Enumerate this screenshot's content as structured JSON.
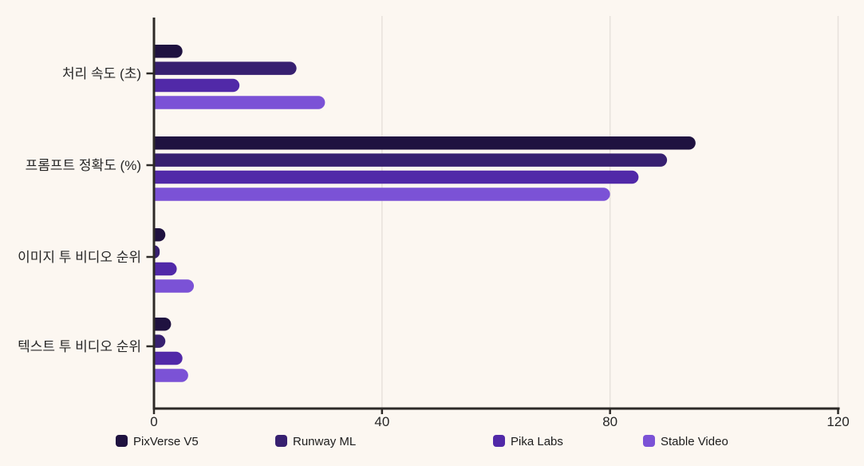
{
  "page": {
    "background": "#fcf7f1"
  },
  "chart_data": {
    "type": "bar",
    "orientation": "horizontal",
    "title": "",
    "xlabel": "",
    "ylabel": "",
    "categories": [
      "처리 속도 (초)",
      "프롬프트 정확도 (%)",
      "이미지 투 비디오 순위",
      "텍스트 투 비디오 순위"
    ],
    "series": [
      {
        "name": "PixVerse V5",
        "color": "#1f1240",
        "values": [
          5,
          95,
          2,
          3
        ]
      },
      {
        "name": "Runway ML",
        "color": "#372070",
        "values": [
          25,
          90,
          1,
          2
        ]
      },
      {
        "name": "Pika Labs",
        "color": "#5129a8",
        "values": [
          15,
          85,
          4,
          5
        ]
      },
      {
        "name": "Stable Video",
        "color": "#7b52d6",
        "values": [
          30,
          80,
          7,
          6
        ]
      }
    ],
    "xlim": [
      0,
      120
    ],
    "xticks": [
      "0",
      "40",
      "80",
      "120"
    ],
    "xtick_values": [
      0,
      40,
      80,
      120
    ],
    "grid": true,
    "legend_position": "bottom",
    "axis_color": "#2d2a27",
    "gridline_color": "#e7e1db",
    "tick_label_color": "#262626",
    "category_label_color": "#262626",
    "legend_text_color": "#1c1c1c",
    "plot_background": "#fcf7f1"
  }
}
